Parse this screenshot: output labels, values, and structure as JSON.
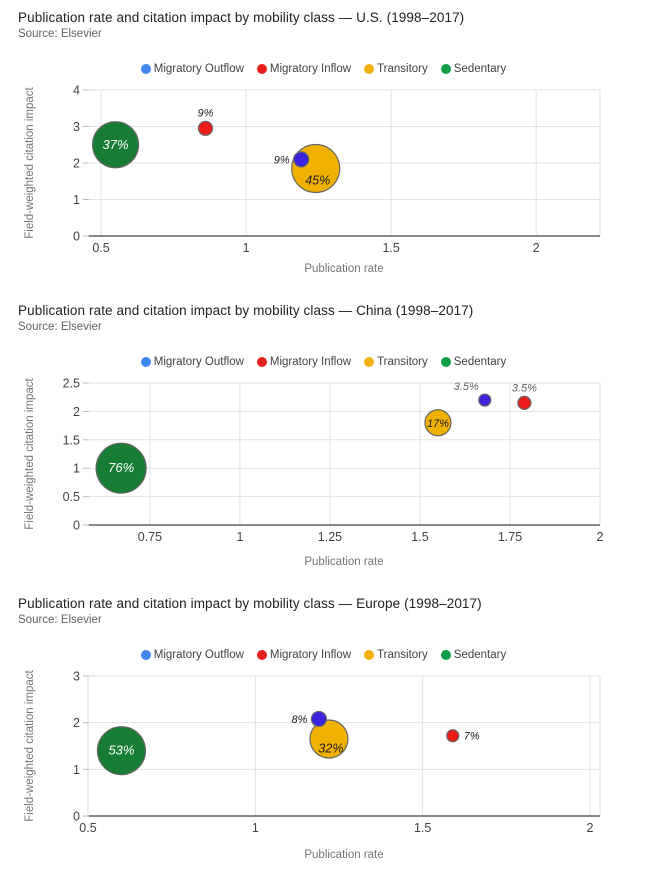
{
  "legend": {
    "items": [
      {
        "label": "Migratory Outflow",
        "color": "#4285F4"
      },
      {
        "label": "Migratory Inflow",
        "color": "#E8201F"
      },
      {
        "label": "Transitory",
        "color": "#F1B10E"
      },
      {
        "label": "Sedentary",
        "color": "#0F9D45"
      }
    ]
  },
  "axis_colors": {
    "gridline": "#e2e2e2",
    "axis_line": "#424242",
    "tick_stub": "#bdbdbd"
  },
  "chart_data": [
    {
      "type": "bubble",
      "title": "Publication rate and citation impact by mobility class — U.S. (1998–2017)",
      "source": "Source: Elsevier",
      "xlabel": "Publication rate",
      "ylabel": "Field-weighted citation impact",
      "x_ticks": [
        0.5,
        1,
        1.5,
        2
      ],
      "x_domain": [
        0.455,
        2.22
      ],
      "y_ticks": [
        0,
        1,
        2,
        3,
        4
      ],
      "y_domain": [
        0,
        4
      ],
      "points": [
        {
          "series": "Sedentary",
          "x": 0.55,
          "y": 2.5,
          "value_label": "37%",
          "size_pct": 37,
          "r": 23,
          "fill": "#177D35",
          "label_pos": "inside",
          "label_color": "#ffffff"
        },
        {
          "series": "Migratory Inflow",
          "x": 0.86,
          "y": 2.95,
          "value_label": "9%",
          "size_pct": 9,
          "r": 7,
          "fill": "#EE1B1B",
          "label_pos": "above",
          "label_color": "#212121"
        },
        {
          "series": "Transitory",
          "x": 1.24,
          "y": 1.85,
          "value_label": "45%",
          "size_pct": 45,
          "r": 24,
          "fill": "#F0B100",
          "label_pos": "inside-bottom",
          "label_color": "#212121"
        },
        {
          "series": "Migratory Outflow",
          "x": 1.19,
          "y": 2.1,
          "value_label": "9%",
          "size_pct": 9,
          "r": 7.5,
          "fill": "#3D23DD",
          "label_pos": "left",
          "label_color": "#212121"
        }
      ]
    },
    {
      "type": "bubble",
      "title": "Publication rate and citation impact by mobility class — China (1998–2017)",
      "source": "Source: Elsevier",
      "xlabel": "Publication rate",
      "ylabel": "Field-weighted citation impact",
      "x_ticks": [
        0.75,
        1,
        1.25,
        1.5,
        1.75,
        2
      ],
      "x_domain": [
        0.578,
        2.0
      ],
      "y_ticks": [
        0,
        0.5,
        1,
        1.5,
        2,
        2.5
      ],
      "y_domain": [
        0,
        2.5
      ],
      "points": [
        {
          "series": "Sedentary",
          "x": 0.67,
          "y": 1.0,
          "value_label": "76%",
          "size_pct": 76,
          "r": 25,
          "fill": "#177D35",
          "label_pos": "inside",
          "label_color": "#ffffff"
        },
        {
          "series": "Transitory",
          "x": 1.55,
          "y": 1.8,
          "value_label": "17%",
          "size_pct": 17,
          "r": 13,
          "fill": "#F0B100",
          "label_pos": "inside",
          "label_color": "#212121"
        },
        {
          "series": "Migratory Inflow",
          "x": 1.79,
          "y": 2.15,
          "value_label": "3.5%",
          "size_pct": 3.5,
          "r": 6.5,
          "fill": "#EE1B1B",
          "label_pos": "above",
          "label_color": "#616161"
        },
        {
          "series": "Migratory Outflow",
          "x": 1.68,
          "y": 2.2,
          "value_label": "3.5%",
          "size_pct": 3.5,
          "r": 6,
          "fill": "#3D23DD",
          "label_pos": "above-left",
          "label_color": "#616161"
        }
      ]
    },
    {
      "type": "bubble",
      "title": "Publication rate and citation impact by mobility class — Europe (1998–2017)",
      "source": "Source: Elsevier",
      "xlabel": "Publication rate",
      "ylabel": "Field-weighted citation impact",
      "x_ticks": [
        0.5,
        1,
        1.5,
        2
      ],
      "x_domain": [
        0.5,
        2.03
      ],
      "y_ticks": [
        0,
        1,
        2,
        3
      ],
      "y_domain": [
        0,
        3
      ],
      "points": [
        {
          "series": "Sedentary",
          "x": 0.6,
          "y": 1.4,
          "value_label": "53%",
          "size_pct": 53,
          "r": 24,
          "fill": "#177D35",
          "label_pos": "inside",
          "label_color": "#ffffff"
        },
        {
          "series": "Transitory",
          "x": 1.22,
          "y": 1.65,
          "value_label": "32%",
          "size_pct": 32,
          "r": 19,
          "fill": "#F0B100",
          "label_pos": "inside-bottom",
          "label_color": "#212121"
        },
        {
          "series": "Migratory Inflow",
          "x": 1.59,
          "y": 1.72,
          "value_label": "7%",
          "size_pct": 7,
          "r": 6,
          "fill": "#EE1B1B",
          "label_pos": "right",
          "label_color": "#212121"
        },
        {
          "series": "Migratory Outflow",
          "x": 1.19,
          "y": 2.08,
          "value_label": "8%",
          "size_pct": 8,
          "r": 7.5,
          "fill": "#3D23DD",
          "label_pos": "left",
          "label_color": "#212121"
        }
      ]
    }
  ]
}
